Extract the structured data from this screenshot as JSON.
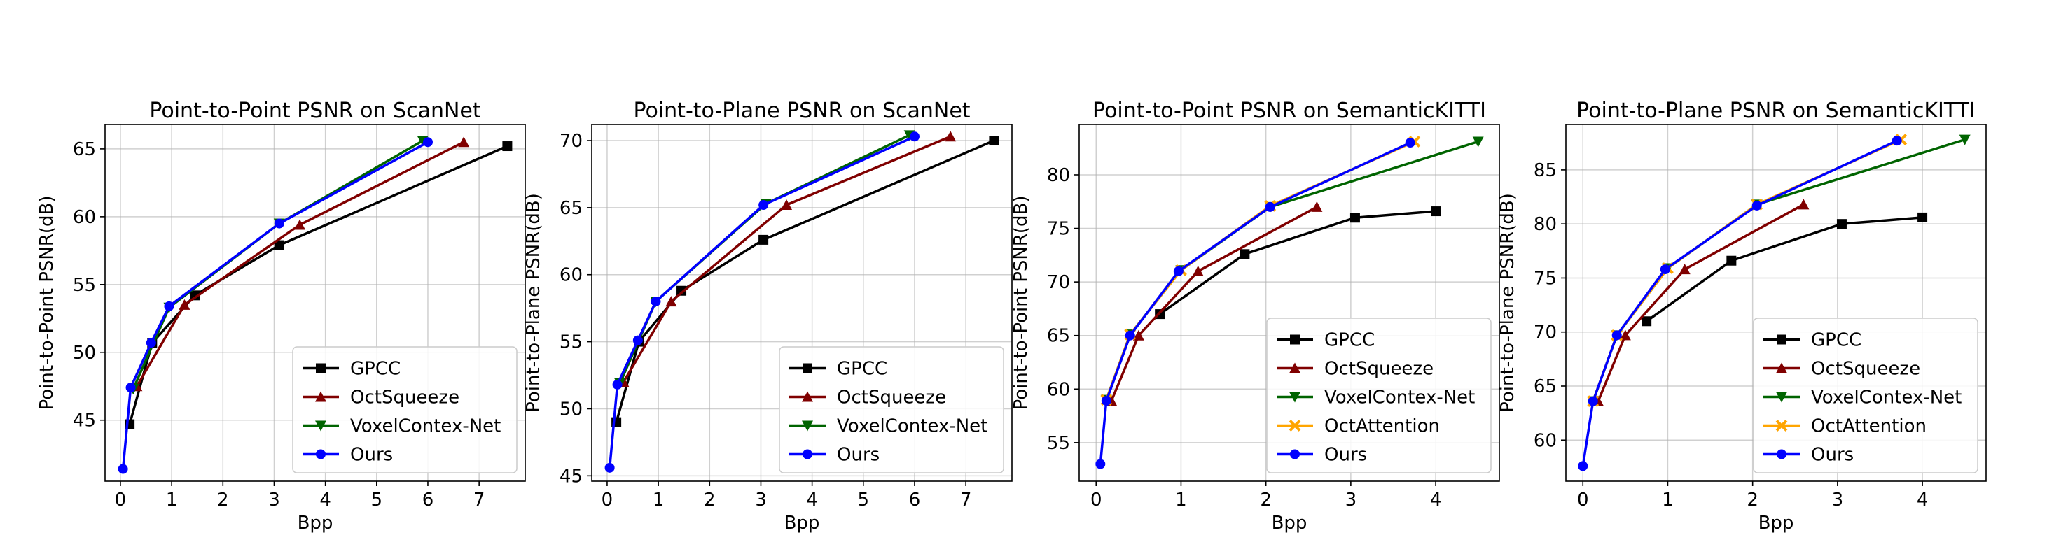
{
  "chart_data": [
    {
      "type": "line",
      "title": "Point-to-Point PSNR on ScanNet",
      "xlabel": "Bpp",
      "ylabel": "Point-to-Point PSNR(dB)",
      "xlim": [
        -0.3,
        7.9
      ],
      "ylim": [
        40.5,
        66.8
      ],
      "xticks": [
        0,
        1,
        2,
        3,
        4,
        5,
        6,
        7
      ],
      "yticks": [
        45,
        50,
        55,
        60,
        65
      ],
      "grid": true,
      "legend": "bottom-right",
      "series": [
        {
          "name": "GPCC",
          "color": "#000000",
          "marker": "square",
          "x": [
            0.18,
            0.62,
            1.45,
            3.1,
            7.55
          ],
          "y": [
            44.7,
            50.7,
            54.2,
            57.9,
            65.2
          ]
        },
        {
          "name": "OctSqueeze",
          "color": "#800000",
          "marker": "triangle-up",
          "x": [
            0.32,
            1.25,
            3.5,
            6.7
          ],
          "y": [
            47.5,
            53.5,
            59.4,
            65.5
          ]
        },
        {
          "name": "VoxelContex-Net",
          "color": "#006400",
          "marker": "triangle-down",
          "x": [
            0.25,
            0.95,
            3.1,
            5.9
          ],
          "y": [
            47.3,
            53.3,
            59.5,
            65.6
          ]
        },
        {
          "name": "Ours",
          "color": "#0000ff",
          "marker": "circle",
          "x": [
            0.05,
            0.2,
            0.6,
            0.95,
            3.1,
            6.0
          ],
          "y": [
            41.4,
            47.4,
            50.7,
            53.4,
            59.5,
            65.5
          ]
        }
      ]
    },
    {
      "type": "line",
      "title": "Point-to-Plane PSNR on ScanNet",
      "xlabel": "Bpp",
      "ylabel": "Point-to-Plane PSNR(dB)",
      "xlim": [
        -0.3,
        7.9
      ],
      "ylim": [
        44.6,
        71.2
      ],
      "xticks": [
        0,
        1,
        2,
        3,
        4,
        5,
        6,
        7
      ],
      "yticks": [
        45,
        50,
        55,
        60,
        65,
        70
      ],
      "grid": true,
      "legend": "bottom-right",
      "series": [
        {
          "name": "GPCC",
          "color": "#000000",
          "marker": "square",
          "x": [
            0.18,
            0.62,
            1.45,
            3.05,
            7.55
          ],
          "y": [
            49.0,
            55.0,
            58.8,
            62.6,
            70.0
          ]
        },
        {
          "name": "OctSqueeze",
          "color": "#800000",
          "marker": "triangle-up",
          "x": [
            0.32,
            1.25,
            3.5,
            6.7
          ],
          "y": [
            52.0,
            58.0,
            65.2,
            70.3
          ]
        },
        {
          "name": "VoxelContex-Net",
          "color": "#006400",
          "marker": "triangle-down",
          "x": [
            0.25,
            0.95,
            3.1,
            5.9
          ],
          "y": [
            51.9,
            58.0,
            65.3,
            70.4
          ]
        },
        {
          "name": "Ours",
          "color": "#0000ff",
          "marker": "circle",
          "x": [
            0.05,
            0.2,
            0.6,
            0.95,
            3.05,
            6.0
          ],
          "y": [
            45.6,
            51.8,
            55.1,
            58.0,
            65.2,
            70.3
          ]
        }
      ]
    },
    {
      "type": "line",
      "title": "Point-to-Point PSNR on SemanticKITTI",
      "xlabel": "Bpp",
      "ylabel": "Point-to-Point PSNR(dB)",
      "xlim": [
        -0.2,
        4.75
      ],
      "ylim": [
        51.4,
        84.7
      ],
      "xticks": [
        0,
        1,
        2,
        3,
        4
      ],
      "yticks": [
        55,
        60,
        65,
        70,
        75,
        80
      ],
      "grid": true,
      "legend": "bottom-right",
      "series": [
        {
          "name": "GPCC",
          "color": "#000000",
          "marker": "square",
          "x": [
            0.75,
            1.75,
            3.05,
            4.0
          ],
          "y": [
            67.0,
            72.6,
            76.0,
            76.6
          ]
        },
        {
          "name": "OctSqueeze",
          "color": "#800000",
          "marker": "triangle-up",
          "x": [
            0.18,
            0.5,
            1.2,
            2.6
          ],
          "y": [
            58.9,
            65.0,
            71.0,
            77.0
          ]
        },
        {
          "name": "VoxelContex-Net",
          "color": "#006400",
          "marker": "triangle-down",
          "x": [
            0.12,
            0.4,
            1.0,
            2.05,
            4.5
          ],
          "y": [
            59.0,
            65.1,
            71.1,
            77.0,
            83.1
          ]
        },
        {
          "name": "OctAttention",
          "color": "#ffa500",
          "marker": "x",
          "x": [
            0.12,
            0.4,
            1.0,
            2.05,
            3.75
          ],
          "y": [
            59.0,
            65.1,
            71.1,
            77.1,
            83.1
          ]
        },
        {
          "name": "Ours",
          "color": "#0000ff",
          "marker": "circle",
          "x": [
            0.05,
            0.12,
            0.4,
            0.97,
            2.05,
            3.7
          ],
          "y": [
            53.0,
            58.9,
            65.0,
            71.0,
            77.0,
            83.0
          ]
        }
      ]
    },
    {
      "type": "line",
      "title": "Point-to-Plane PSNR on SemanticKITTI",
      "xlabel": "Bpp",
      "ylabel": "Point-to-Plane PSNR(dB)",
      "xlim": [
        -0.2,
        4.75
      ],
      "ylim": [
        56.2,
        89.2
      ],
      "xticks": [
        0,
        1,
        2,
        3,
        4
      ],
      "yticks": [
        60,
        65,
        70,
        75,
        80,
        85
      ],
      "grid": true,
      "legend": "bottom-right",
      "series": [
        {
          "name": "GPCC",
          "color": "#000000",
          "marker": "square",
          "x": [
            0.75,
            1.75,
            3.05,
            4.0
          ],
          "y": [
            71.0,
            76.6,
            80.0,
            80.6
          ]
        },
        {
          "name": "OctSqueeze",
          "color": "#800000",
          "marker": "triangle-up",
          "x": [
            0.18,
            0.5,
            1.2,
            2.6
          ],
          "y": [
            63.6,
            69.7,
            75.8,
            81.8
          ]
        },
        {
          "name": "VoxelContex-Net",
          "color": "#006400",
          "marker": "triangle-down",
          "x": [
            0.12,
            0.4,
            1.0,
            2.05,
            4.5
          ],
          "y": [
            63.6,
            69.7,
            75.9,
            81.8,
            87.8
          ]
        },
        {
          "name": "OctAttention",
          "color": "#ffa500",
          "marker": "x",
          "x": [
            0.12,
            0.4,
            1.0,
            2.05,
            3.75
          ],
          "y": [
            63.6,
            69.7,
            75.9,
            81.8,
            87.8
          ]
        },
        {
          "name": "Ours",
          "color": "#0000ff",
          "marker": "circle",
          "x": [
            0.0,
            0.12,
            0.4,
            0.97,
            2.05,
            3.7
          ],
          "y": [
            57.6,
            63.6,
            69.7,
            75.8,
            81.7,
            87.7
          ]
        }
      ]
    }
  ]
}
